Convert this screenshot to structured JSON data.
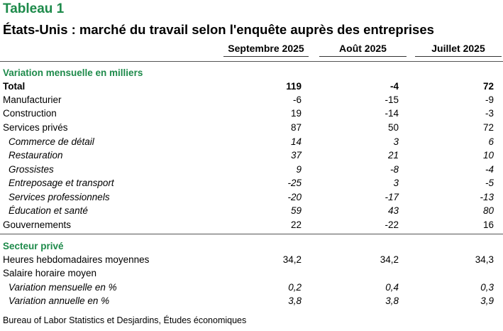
{
  "title": "Tableau 1",
  "subtitle": "États-Unis : marché du travail selon l'enquête auprès des entreprises",
  "columns": [
    "Septembre 2025",
    "Août 2025",
    "Juillet 2025"
  ],
  "sections": [
    {
      "heading": "Variation mensuelle en milliers",
      "rows": [
        {
          "label": "Total",
          "values": [
            "119",
            "-4",
            "72"
          ]
        },
        {
          "label": "Manufacturier",
          "values": [
            "-6",
            "-15",
            "-9"
          ]
        },
        {
          "label": "Construction",
          "values": [
            "19",
            "-14",
            "-3"
          ]
        },
        {
          "label": "Services privés",
          "values": [
            "87",
            "50",
            "72"
          ]
        },
        {
          "label": "Commerce de détail",
          "values": [
            "14",
            "3",
            "6"
          ]
        },
        {
          "label": "Restauration",
          "values": [
            "37",
            "21",
            "10"
          ]
        },
        {
          "label": "Grossistes",
          "values": [
            "9",
            "-8",
            "-4"
          ]
        },
        {
          "label": "Entreposage et transport",
          "values": [
            "-25",
            "3",
            "-5"
          ]
        },
        {
          "label": "Services professionnels",
          "values": [
            "-20",
            "-17",
            "-13"
          ]
        },
        {
          "label": "Éducation et santé",
          "values": [
            "59",
            "43",
            "80"
          ]
        },
        {
          "label": "Gouvernements",
          "values": [
            "22",
            "-22",
            "16"
          ]
        }
      ]
    },
    {
      "heading": "Secteur privé",
      "rows": [
        {
          "label": "Heures hebdomadaires moyennes",
          "values": [
            "34,2",
            "34,2",
            "34,3"
          ]
        },
        {
          "label": "Salaire horaire moyen",
          "values": [
            "",
            "",
            ""
          ]
        },
        {
          "label": "Variation mensuelle en %",
          "values": [
            "0,2",
            "0,4",
            "0,3"
          ]
        },
        {
          "label": "Variation annuelle en %",
          "values": [
            "3,8",
            "3,8",
            "3,9"
          ]
        }
      ]
    }
  ],
  "source": "Bureau of Labor Statistics et Desjardins, Études économiques"
}
